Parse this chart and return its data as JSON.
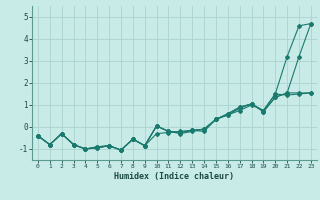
{
  "title": "",
  "xlabel": "Humidex (Indice chaleur)",
  "ylabel": "",
  "background_color": "#c8ebe8",
  "grid_color": "#aad4d0",
  "line_color": "#1a7a6e",
  "xlim": [
    -0.5,
    23.5
  ],
  "ylim": [
    -1.5,
    5.5
  ],
  "xticks": [
    0,
    1,
    2,
    3,
    4,
    5,
    6,
    7,
    8,
    9,
    10,
    11,
    12,
    13,
    14,
    15,
    16,
    17,
    18,
    19,
    20,
    21,
    22,
    23
  ],
  "yticks": [
    -1,
    0,
    1,
    2,
    3,
    4,
    5
  ],
  "line1_y": [
    -0.4,
    -0.8,
    -0.3,
    -0.8,
    -1.0,
    -0.9,
    -0.85,
    -1.05,
    -0.55,
    -0.85,
    -0.3,
    -0.25,
    -0.2,
    -0.15,
    -0.2,
    0.35,
    0.55,
    0.75,
    1.0,
    0.75,
    1.5,
    3.2,
    4.6,
    4.7
  ],
  "line2_y": [
    -0.4,
    -0.8,
    -0.3,
    -0.8,
    -1.0,
    -0.9,
    -0.85,
    -1.05,
    -0.55,
    -0.85,
    0.05,
    -0.2,
    -0.3,
    -0.2,
    -0.1,
    0.35,
    0.55,
    0.85,
    1.05,
    0.75,
    1.5,
    1.45,
    1.5,
    1.55
  ],
  "line3_y": [
    -0.4,
    -0.8,
    -0.3,
    -0.8,
    -1.0,
    -0.95,
    -0.85,
    -1.05,
    -0.55,
    -0.85,
    0.05,
    -0.2,
    -0.25,
    -0.15,
    -0.1,
    0.35,
    0.6,
    0.9,
    1.05,
    0.7,
    1.35,
    1.55,
    3.2,
    4.7
  ],
  "line4_y": [
    -0.4,
    -0.8,
    -0.3,
    -0.8,
    -1.0,
    -0.95,
    -0.85,
    -1.05,
    -0.55,
    -0.85,
    0.05,
    -0.2,
    -0.25,
    -0.15,
    -0.1,
    0.35,
    0.6,
    0.9,
    1.05,
    0.7,
    1.35,
    1.55,
    1.55,
    1.55
  ]
}
